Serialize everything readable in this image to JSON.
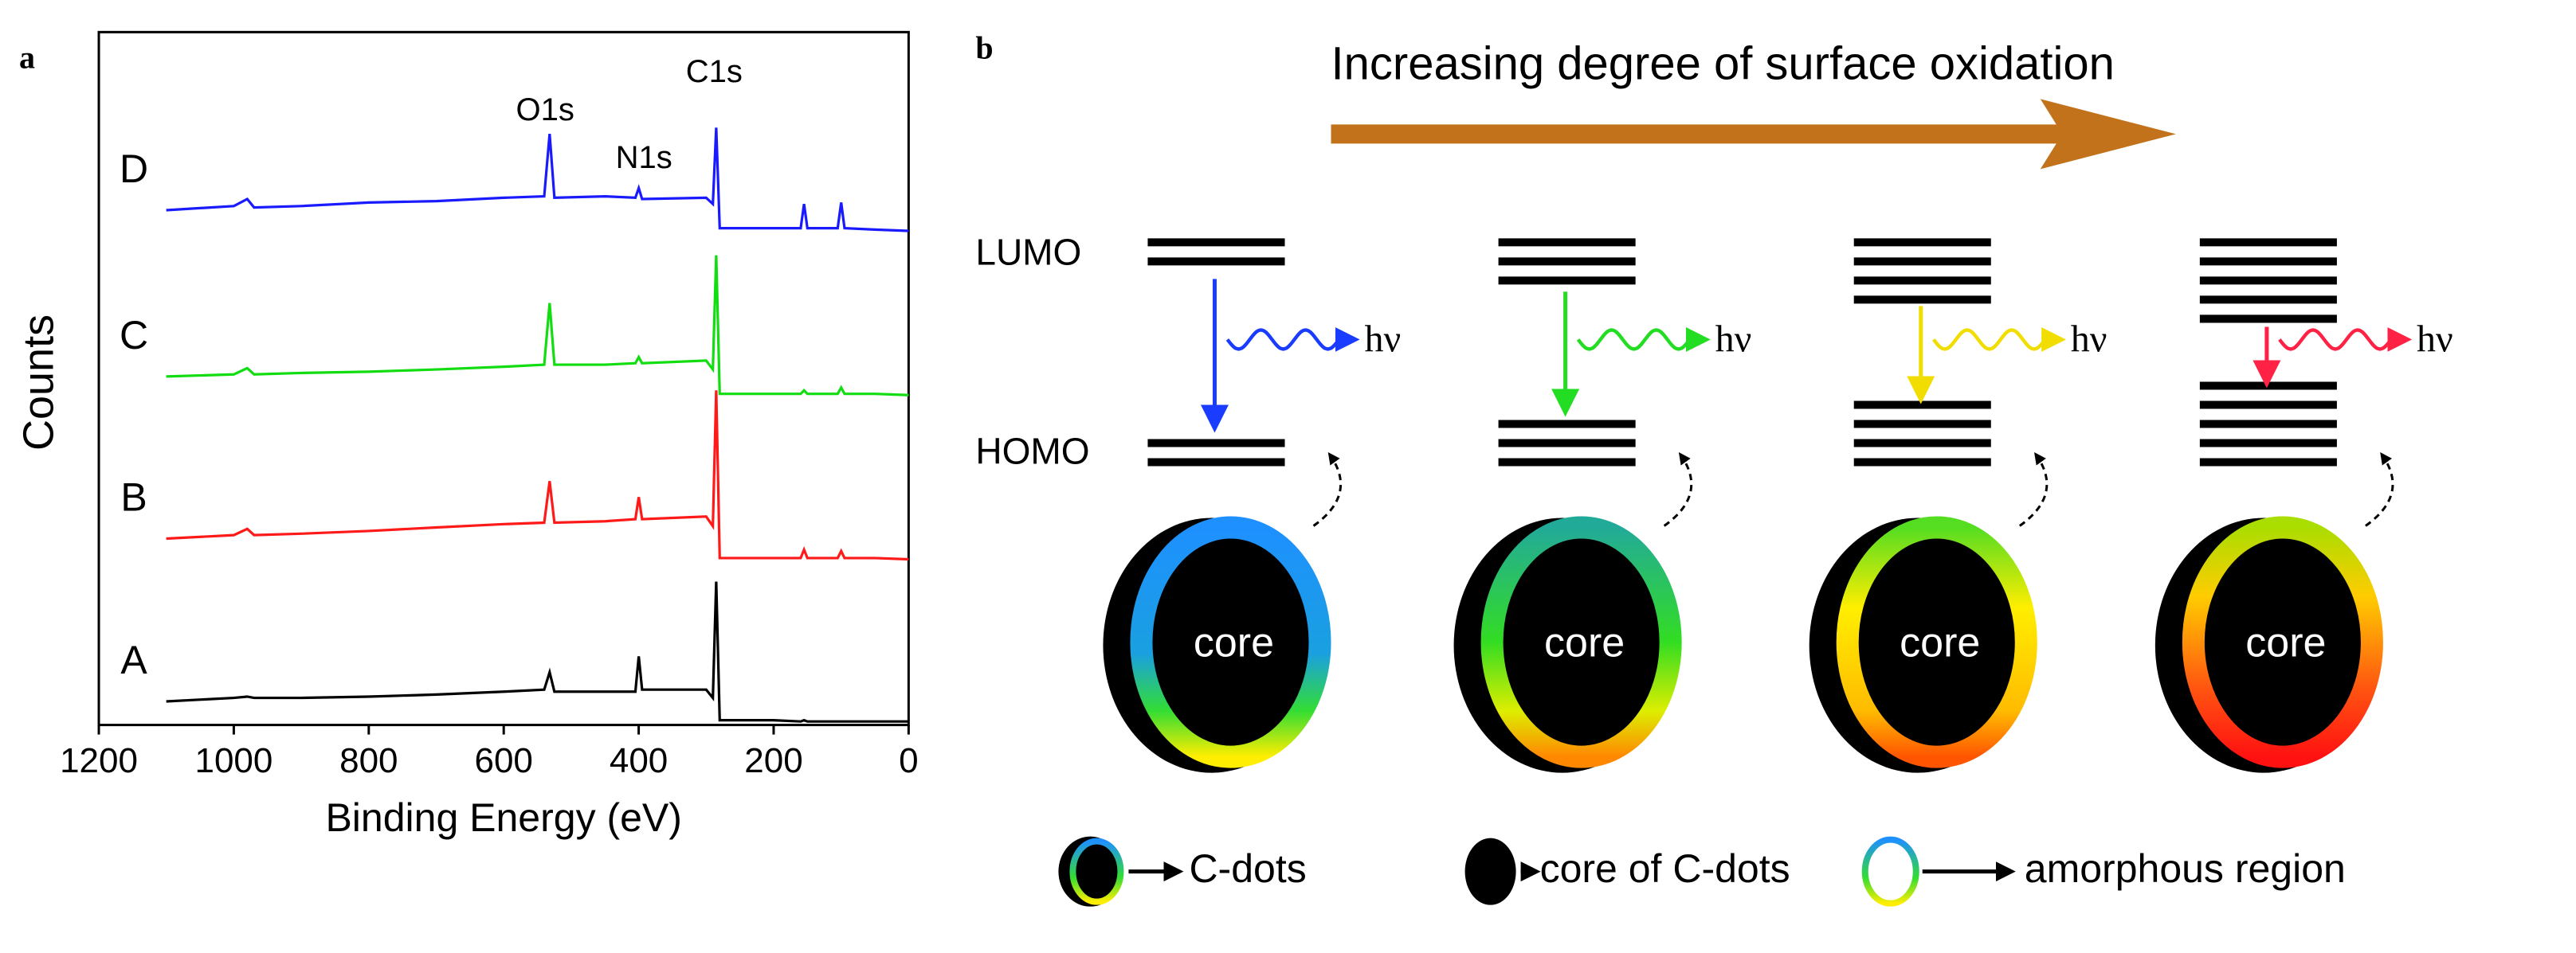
{
  "panel_labels": [
    "a",
    "b"
  ],
  "chart_data": {
    "type": "line",
    "xlabel": "Binding Energy (eV)",
    "ylabel": "Counts",
    "xlim": [
      1200,
      0
    ],
    "xticks": [
      1200,
      1000,
      800,
      600,
      400,
      200,
      0
    ],
    "ylim": [
      0,
      100
    ],
    "annotations": [
      "O1s",
      "N1s",
      "C1s"
    ],
    "x": [
      1100,
      1000,
      980,
      970,
      900,
      800,
      700,
      600,
      540,
      532,
      525,
      450,
      405,
      400,
      395,
      300,
      290,
      285,
      280,
      270,
      200,
      160,
      155,
      150,
      105,
      100,
      95,
      50,
      0
    ],
    "series": [
      {
        "name": "A",
        "color": "#000000",
        "values": [
          3.4,
          3.9,
          4.1,
          3.9,
          3.9,
          4.1,
          4.4,
          4.8,
          5.1,
          7.6,
          4.8,
          4.8,
          4.8,
          9.9,
          5.1,
          5.1,
          3.9,
          20.7,
          0.7,
          0.7,
          0.7,
          0.5,
          0.7,
          0.5,
          0.5,
          0.5,
          0.5,
          0.5,
          0.5
        ]
      },
      {
        "name": "B",
        "color": "#ff1a1a",
        "values": [
          26.9,
          27.4,
          28.3,
          27.4,
          27.6,
          28.0,
          28.5,
          29.0,
          29.2,
          35.2,
          29.2,
          29.4,
          29.7,
          32.9,
          29.7,
          30.1,
          28.7,
          48.3,
          24.1,
          24.1,
          24.1,
          24.1,
          25.3,
          24.1,
          24.1,
          25.1,
          24.1,
          24.1,
          23.9
        ]
      },
      {
        "name": "C",
        "color": "#11dd11",
        "values": [
          50.3,
          50.6,
          51.5,
          50.6,
          50.8,
          51.0,
          51.3,
          51.7,
          52.0,
          60.9,
          52.0,
          52.0,
          52.2,
          53.1,
          52.2,
          52.6,
          51.3,
          67.8,
          47.8,
          47.8,
          47.8,
          47.8,
          48.3,
          47.8,
          47.8,
          48.7,
          47.8,
          47.8,
          47.6
        ]
      },
      {
        "name": "D",
        "color": "#1a1aff",
        "values": [
          74.3,
          74.9,
          75.9,
          74.7,
          74.9,
          75.4,
          75.6,
          76.1,
          76.3,
          85.3,
          76.1,
          76.3,
          76.1,
          77.5,
          75.9,
          76.1,
          75.2,
          86.2,
          71.7,
          71.7,
          71.7,
          71.7,
          75.2,
          71.7,
          71.7,
          75.4,
          71.7,
          71.5,
          71.3
        ]
      }
    ]
  },
  "diagram": {
    "title": "Increasing degree of surface oxidation",
    "levels": [
      "LUMO",
      "HOMO"
    ],
    "emission": [
      "hν",
      "hν",
      "hν",
      "hν"
    ],
    "core": [
      "core",
      "core",
      "core",
      "core"
    ],
    "legend": [
      "C-dots",
      "core of C-dots",
      "amorphous region"
    ]
  }
}
